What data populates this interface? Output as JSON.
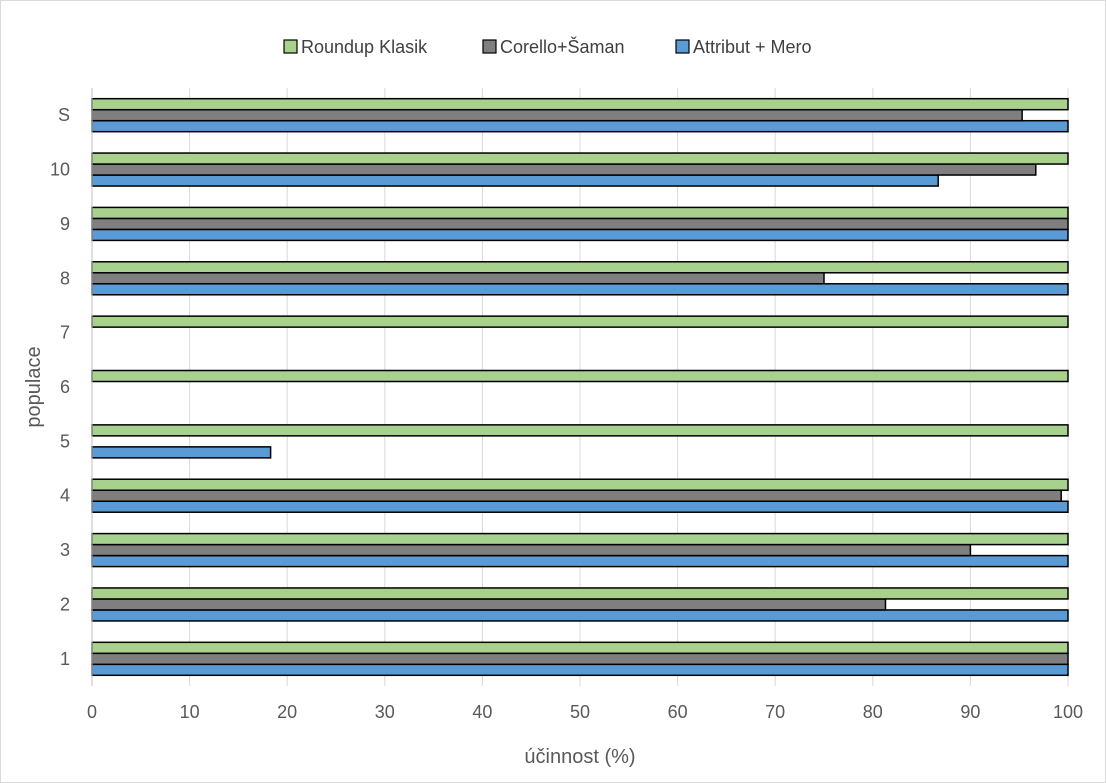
{
  "chart_data": {
    "type": "bar",
    "orientation": "horizontal",
    "title": "",
    "xlabel": "účinnost (%)",
    "ylabel": "populace",
    "xlim": [
      0,
      100
    ],
    "x_ticks": [
      0,
      10,
      20,
      30,
      40,
      50,
      60,
      70,
      80,
      90,
      100
    ],
    "categories": [
      "1",
      "2",
      "3",
      "4",
      "5",
      "6",
      "7",
      "8",
      "9",
      "10",
      "S"
    ],
    "legend_position": "top",
    "grid": "vertical",
    "series": [
      {
        "name": "Attribut + Mero",
        "color": "#5b9bd5",
        "values": [
          100,
          100,
          100,
          100,
          18.3,
          null,
          null,
          100,
          100,
          86.7,
          100
        ]
      },
      {
        "name": "Corello+Šaman",
        "color": "#7f7f7f",
        "values": [
          100,
          81.3,
          90,
          99.3,
          null,
          null,
          null,
          75,
          100,
          96.7,
          95.3
        ]
      },
      {
        "name": "Roundup Klasik",
        "color": "#a9d18e",
        "values": [
          100,
          100,
          100,
          100,
          100,
          100,
          100,
          100,
          100,
          100,
          100
        ]
      }
    ],
    "legend_order": [
      "Roundup Klasik",
      "Corello+Šaman",
      "Attribut + Mero"
    ]
  }
}
